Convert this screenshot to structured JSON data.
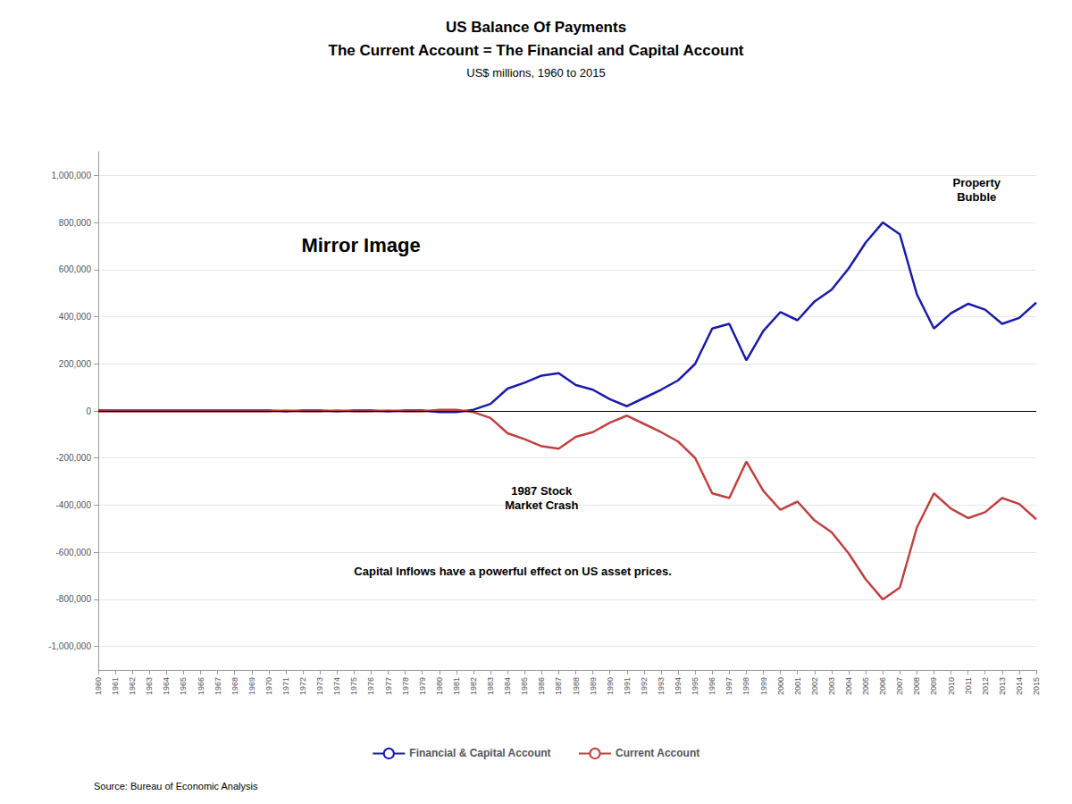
{
  "chart_data": {
    "type": "line",
    "title": "US Balance Of Payments\nThe Current Account = The Financial and Capital Account",
    "subtitle": "US$ millions, 1960 to 2015",
    "annotations": [
      "Mirror Image",
      "Property\nBubble",
      "1987 Stock\nMarket Crash",
      "Capital Inflows have a powerful effect on US asset prices."
    ],
    "source": "Source: Bureau of Economic Analysis",
    "x": [
      1960,
      1961,
      1962,
      1963,
      1964,
      1965,
      1966,
      1967,
      1968,
      1969,
      1970,
      1971,
      1972,
      1973,
      1974,
      1975,
      1976,
      1977,
      1978,
      1979,
      1980,
      1981,
      1982,
      1983,
      1984,
      1985,
      1986,
      1987,
      1988,
      1989,
      1990,
      1991,
      1992,
      1993,
      1994,
      1995,
      1996,
      1997,
      1998,
      1999,
      2000,
      2001,
      2002,
      2003,
      2004,
      2005,
      2006,
      2007,
      2008,
      2009,
      2010,
      2011,
      2012,
      2013,
      2014,
      2015
    ],
    "series": [
      {
        "name": "Financial & Capital Account",
        "color": "#1a1aaa",
        "values": [
          2000,
          2000,
          2000,
          2000,
          2000,
          2000,
          2000,
          2000,
          2000,
          2000,
          2000,
          -2000,
          2000,
          2000,
          -2000,
          2000,
          2000,
          -2000,
          2000,
          2000,
          -5000,
          -5000,
          5000,
          30000,
          95000,
          120000,
          150000,
          160000,
          110000,
          90000,
          50000,
          20000,
          55000,
          90000,
          130000,
          200000,
          350000,
          370000,
          215000,
          340000,
          420000,
          385000,
          465000,
          515000,
          605000,
          715000,
          800000,
          750000,
          495000,
          350000,
          415000,
          455000,
          430000,
          370000,
          395000,
          460000
        ]
      },
      {
        "name": "Current Account",
        "color": "#c04040",
        "values": [
          -2000,
          -2000,
          -2000,
          -2000,
          -2000,
          -2000,
          -2000,
          -2000,
          -2000,
          -2000,
          -2000,
          2000,
          -2000,
          -2000,
          2000,
          -2000,
          -2000,
          2000,
          -2000,
          -2000,
          5000,
          5000,
          -5000,
          -30000,
          -95000,
          -120000,
          -150000,
          -160000,
          -110000,
          -90000,
          -50000,
          -20000,
          -55000,
          -90000,
          -130000,
          -200000,
          -350000,
          -370000,
          -215000,
          -340000,
          -420000,
          -385000,
          -465000,
          -515000,
          -605000,
          -715000,
          -800000,
          -750000,
          -495000,
          -350000,
          -415000,
          -455000,
          -430000,
          -370000,
          -395000,
          -460000
        ]
      }
    ],
    "xlim": [
      1960,
      2015
    ],
    "xticks": [
      1960,
      1961,
      1962,
      1963,
      1964,
      1965,
      1966,
      1967,
      1968,
      1969,
      1970,
      1971,
      1972,
      1973,
      1974,
      1975,
      1976,
      1977,
      1978,
      1979,
      1980,
      1981,
      1982,
      1983,
      1984,
      1985,
      1986,
      1987,
      1988,
      1989,
      1990,
      1991,
      1992,
      1993,
      1994,
      1995,
      1996,
      1997,
      1998,
      1999,
      2000,
      2001,
      2002,
      2003,
      2004,
      2005,
      2006,
      2007,
      2008,
      2009,
      2010,
      2011,
      2012,
      2013,
      2014,
      2015
    ],
    "ylim": [
      -1100000,
      1100000
    ],
    "yticks": [
      {
        "value": -1000000,
        "label": "-1,000,000"
      },
      {
        "value": -800000,
        "label": "-800,000"
      },
      {
        "value": -600000,
        "label": "-600,000"
      },
      {
        "value": -400000,
        "label": "-400,000"
      },
      {
        "value": -200000,
        "label": "-200,000"
      },
      0,
      {
        "value": 200000,
        "label": "200,000"
      },
      {
        "value": 400000,
        "label": "400,000"
      },
      {
        "value": 600000,
        "label": "600,000"
      },
      {
        "value": 800000,
        "label": "800,000"
      },
      {
        "value": 1000000,
        "label": "1,000,000"
      }
    ],
    "grid": true,
    "legend": "bottom"
  }
}
